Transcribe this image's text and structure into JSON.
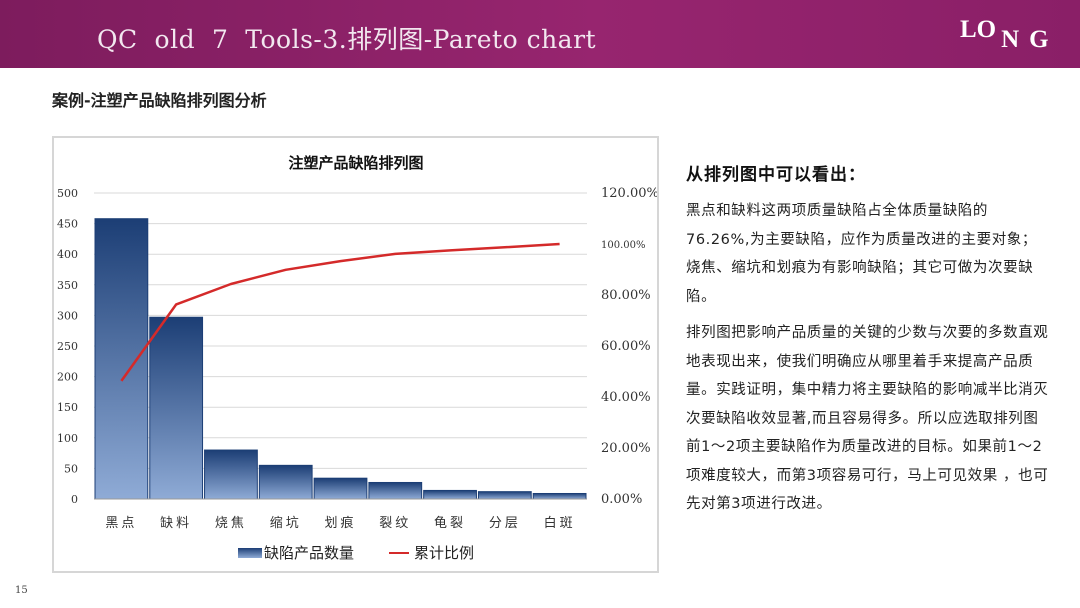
{
  "banner": {
    "title": "QC  old  7  Tools-3.排列图-Pareto chart",
    "logo": "LONG"
  },
  "subtitle": "案例-注塑产品缺陷排列图分析",
  "notes": {
    "heading": "从排列图中可以看出：",
    "paragraphs": [
      "黑点和缺料这两项质量缺陷占全体质量缺陷的76.26%,为主要缺陷，应作为质量改进的主要对象；烧焦、缩坑和划痕为有影响缺陷；其它可做为次要缺陷。",
      "排列图把影响产品质量的关键的少数与次要的多数直观地表现出来，使我们明确应从哪里着手来提高产品质量。实践证明，集中精力将主要缺陷的影响减半比消灭次要缺陷收效显著,而且容易得多。所以应选取排列图前1～2项主要缺陷作为质量改进的目标。如果前1～2项难度较大，而第3项容易可行，马上可见效果 ，也可先对第3项进行改进。"
    ]
  },
  "page_number": "15",
  "colors": {
    "bar_light": "#8fabd6",
    "bar_dark": "#1c3e75",
    "line": "#d42a2a",
    "banner": "#8e2168"
  },
  "chart_data": {
    "type": "bar",
    "title": "注塑产品缺陷排列图",
    "categories": [
      "黑点",
      "缺料",
      "烧焦",
      "缩坑",
      "划痕",
      "裂纹",
      "龟裂",
      "分层",
      "白斑"
    ],
    "series": [
      {
        "name": "缺陷产品数量",
        "type": "bar",
        "values": [
          458,
          297,
          80,
          55,
          34,
          27,
          14,
          12,
          9
        ]
      },
      {
        "name": "累计比例",
        "type": "line",
        "axis": "right",
        "values": [
          46.3,
          76.3,
          84.3,
          89.9,
          93.3,
          96.1,
          97.5,
          98.7,
          100
        ]
      }
    ],
    "ylim": [
      0,
      500
    ],
    "yticks": [
      "0",
      "50",
      "100",
      "150",
      "200",
      "250",
      "300",
      "350",
      "400",
      "450",
      "500"
    ],
    "y2lim": [
      0,
      120
    ],
    "y2ticks": [
      "0.00%",
      "20.00%",
      "40.00%",
      "60.00%",
      "80.00%",
      "100.00%",
      "120.00%"
    ],
    "legend_position": "bottom",
    "grid": true
  }
}
